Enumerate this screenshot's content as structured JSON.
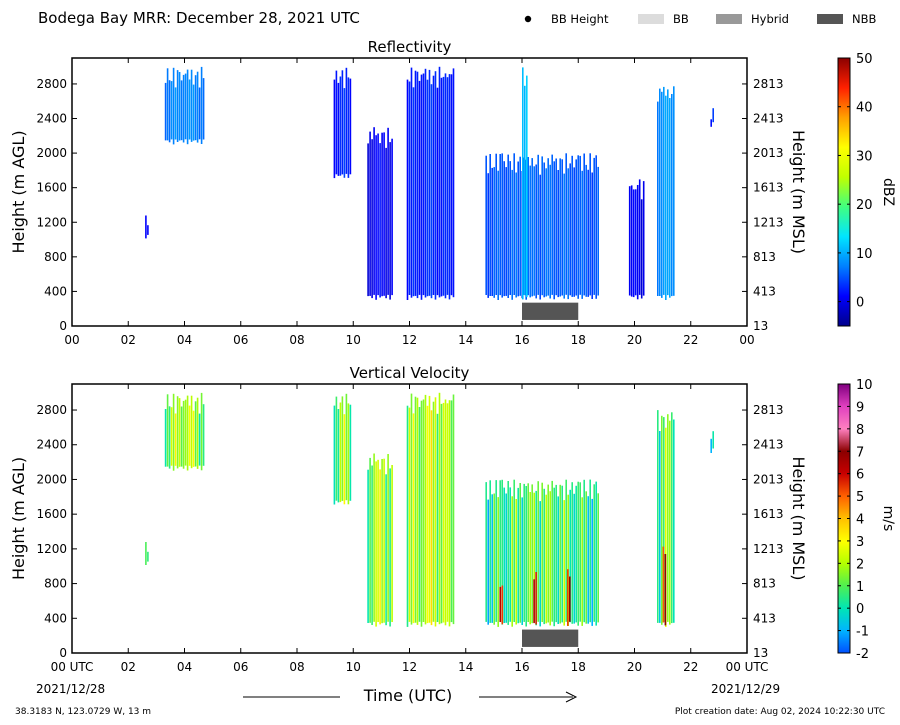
{
  "header": {
    "title": "Bodega Bay MRR:  December 28, 2021 UTC",
    "legend": [
      {
        "label": "BB Height",
        "kind": "dot",
        "color": "#000000"
      },
      {
        "label": "BB",
        "kind": "box",
        "color": "#dcdcdc"
      },
      {
        "label": "Hybrid",
        "kind": "box",
        "color": "#999999"
      },
      {
        "label": "NBB",
        "kind": "box",
        "color": "#555555"
      }
    ]
  },
  "footer": {
    "location": "38.3183 N, 123.0729 W, 13 m",
    "creation": "Plot creation date: Aug 02, 2024 10:22:30 UTC",
    "xlabel": "Time (UTC)",
    "start_date": "2021/12/28",
    "end_date": "2021/12/29"
  },
  "chart_data": [
    {
      "type": "heatmap",
      "title": "Reflectivity",
      "ylabel_left": "Height (m AGL)",
      "ylabel_right": "Height (m MSL)",
      "colorbar_label": "dBZ",
      "colorbar_ticks": [
        "50",
        "40",
        "30",
        "20",
        "10",
        "0"
      ],
      "colorbar_range": [
        -5,
        50
      ],
      "colorscale": [
        "#00008b",
        "#0000ff",
        "#0080ff",
        "#00e5ff",
        "#40ff80",
        "#c0ff00",
        "#ffff00",
        "#ffa000",
        "#ff2000",
        "#8b0000"
      ],
      "xlim": [
        0,
        24
      ],
      "ylim": [
        0,
        3100
      ],
      "x_ticks": [
        "00",
        "02",
        "04",
        "06",
        "08",
        "10",
        "12",
        "14",
        "16",
        "18",
        "20",
        "22",
        "00"
      ],
      "y_ticks_left": [
        "0",
        "400",
        "800",
        "1200",
        "1600",
        "2000",
        "2400",
        "2800"
      ],
      "y_ticks_right": [
        "13",
        "413",
        "813",
        "1213",
        "1613",
        "2013",
        "2413",
        "2813"
      ],
      "bright_band": {
        "type": "NBB",
        "start_hour": 16,
        "end_hour": 18
      },
      "echo_regions": [
        {
          "start_hour": 3.3,
          "end_hour": 4.7,
          "base_m": 2100,
          "top_m": 3000,
          "value": 8
        },
        {
          "start_hour": 2.6,
          "end_hour": 2.7,
          "base_m": 1000,
          "top_m": 1300,
          "value": 2
        },
        {
          "start_hour": 9.3,
          "end_hour": 9.9,
          "base_m": 1700,
          "top_m": 3000,
          "value": 3
        },
        {
          "start_hour": 10.5,
          "end_hour": 11.4,
          "base_m": 300,
          "top_m": 2300,
          "value": 1
        },
        {
          "start_hour": 11.9,
          "end_hour": 13.6,
          "base_m": 300,
          "top_m": 3000,
          "value": 3
        },
        {
          "start_hour": 14.7,
          "end_hour": 18.7,
          "base_m": 300,
          "top_m": 2000,
          "value": 6
        },
        {
          "start_hour": 16.0,
          "end_hour": 16.2,
          "base_m": 300,
          "top_m": 3000,
          "value": 12
        },
        {
          "start_hour": 20.8,
          "end_hour": 21.4,
          "base_m": 300,
          "top_m": 2800,
          "value": 9
        },
        {
          "start_hour": 19.8,
          "end_hour": 20.3,
          "base_m": 300,
          "top_m": 1700,
          "value": 1
        },
        {
          "start_hour": 22.7,
          "end_hour": 22.8,
          "base_m": 2300,
          "top_m": 2600,
          "value": 4
        }
      ]
    },
    {
      "type": "heatmap",
      "title": "Vertical Velocity",
      "ylabel_left": "Height (m AGL)",
      "ylabel_right": "Height (m MSL)",
      "colorbar_label": "m/s",
      "colorbar_ticks": [
        "10",
        "9",
        "8",
        "7",
        "6",
        "5",
        "4",
        "3",
        "2",
        "1",
        "0",
        "-1",
        "-2"
      ],
      "colorbar_range": [
        -2,
        10
      ],
      "colorscale": [
        "#0050ff",
        "#00b4ff",
        "#00e6b4",
        "#50f050",
        "#b4ff00",
        "#ffff00",
        "#ffc000",
        "#ff6000",
        "#c80000",
        "#8b0000",
        "#ff80c0",
        "#e040c0",
        "#800080"
      ],
      "xlim": [
        0,
        24
      ],
      "ylim": [
        0,
        3100
      ],
      "x_ticks": [
        "00 UTC",
        "02",
        "04",
        "06",
        "08",
        "10",
        "12",
        "14",
        "16",
        "18",
        "20",
        "22",
        "00 UTC"
      ],
      "y_ticks_left": [
        "0",
        "400",
        "800",
        "1200",
        "1600",
        "2000",
        "2400",
        "2800"
      ],
      "y_ticks_right": [
        "13",
        "413",
        "813",
        "1213",
        "1613",
        "2013",
        "2413",
        "2813"
      ],
      "bright_band": {
        "type": "NBB",
        "start_hour": 16,
        "end_hour": 18
      },
      "echo_regions": [
        {
          "start_hour": 3.3,
          "end_hour": 4.7,
          "base_m": 2100,
          "top_m": 3000,
          "value": 2.2
        },
        {
          "start_hour": 2.6,
          "end_hour": 2.7,
          "base_m": 1000,
          "top_m": 1300,
          "value": 1.8
        },
        {
          "start_hour": 9.3,
          "end_hour": 9.9,
          "base_m": 1700,
          "top_m": 3000,
          "value": 1.8
        },
        {
          "start_hour": 10.5,
          "end_hour": 11.4,
          "base_m": 300,
          "top_m": 2300,
          "value": 2.2
        },
        {
          "start_hour": 11.9,
          "end_hour": 13.6,
          "base_m": 300,
          "top_m": 3000,
          "value": 2.3
        },
        {
          "start_hour": 14.7,
          "end_hour": 18.7,
          "base_m": 300,
          "top_m": 2000,
          "value": 1.2
        },
        {
          "start_hour": 15.2,
          "end_hour": 15.3,
          "base_m": 300,
          "top_m": 900,
          "value": 6.5
        },
        {
          "start_hour": 16.4,
          "end_hour": 16.5,
          "base_m": 300,
          "top_m": 1000,
          "value": 6.5
        },
        {
          "start_hour": 17.6,
          "end_hour": 17.7,
          "base_m": 300,
          "top_m": 1000,
          "value": 6.5
        },
        {
          "start_hour": 20.8,
          "end_hour": 21.4,
          "base_m": 300,
          "top_m": 2800,
          "value": 1.5
        },
        {
          "start_hour": 21.0,
          "end_hour": 21.1,
          "base_m": 300,
          "top_m": 1300,
          "value": 6.5
        },
        {
          "start_hour": 22.7,
          "end_hour": 22.8,
          "base_m": 2300,
          "top_m": 2600,
          "value": 0.8
        }
      ]
    }
  ]
}
